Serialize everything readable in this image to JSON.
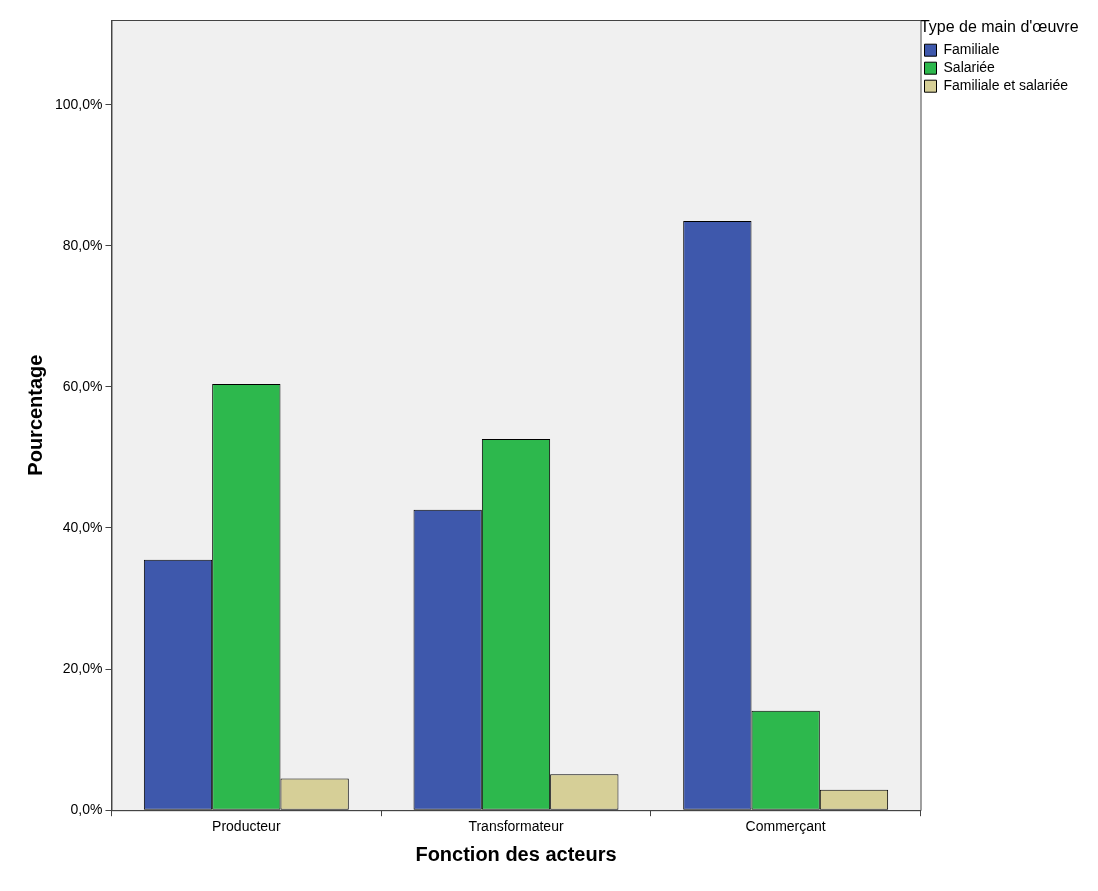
{
  "chart_data": {
    "type": "bar",
    "xlabel": "Fonction des acteurs",
    "ylabel": "Pourcentage",
    "legend_title": "Type de main d'œuvre",
    "categories": [
      "Producteur",
      "Transformateur",
      "Commerçant"
    ],
    "series": [
      {
        "name": "Familiale",
        "color": "#3e58ac",
        "values": [
          35.5,
          42.6,
          83.5
        ]
      },
      {
        "name": "Salariée",
        "color": "#2db84d",
        "values": [
          60.4,
          52.6,
          14.1
        ]
      },
      {
        "name": "Familiale et salariée",
        "color": "#d6cf97",
        "values": [
          4.5,
          5.1,
          2.9
        ]
      }
    ],
    "ylim": [
      0,
      112
    ],
    "yticks": [
      {
        "value": 0,
        "label": "0,0%"
      },
      {
        "value": 20,
        "label": "20,0%"
      },
      {
        "value": 40,
        "label": "40,0%"
      },
      {
        "value": 60,
        "label": "60,0%"
      },
      {
        "value": 80,
        "label": "80,0%"
      },
      {
        "value": 100,
        "label": "100,0%"
      }
    ],
    "grid": false,
    "legend": "top right"
  }
}
